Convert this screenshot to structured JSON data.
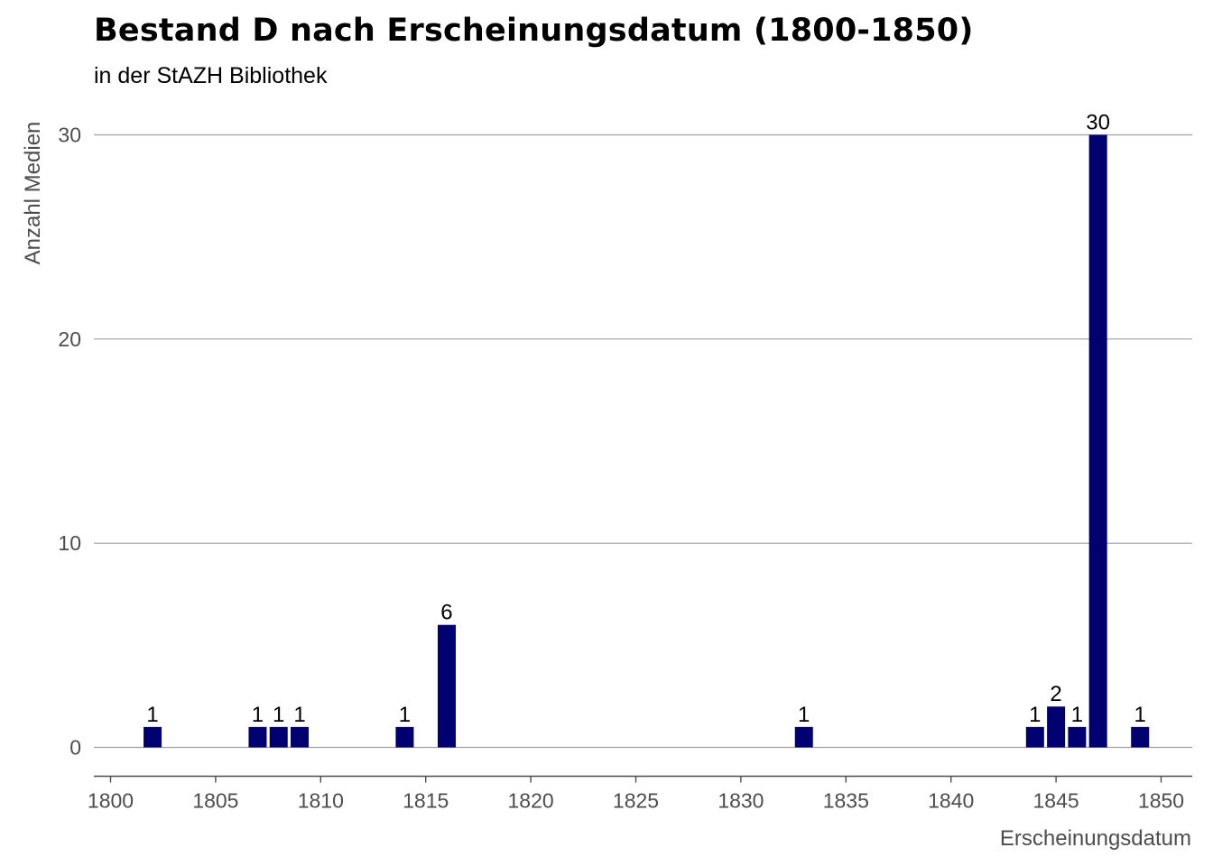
{
  "chart_data": {
    "type": "bar",
    "title": "Bestand D nach Erscheinungsdatum (1800-1850)",
    "subtitle": "in der StAZH Bibliothek",
    "xlabel": "Erscheinungsdatum",
    "ylabel": "Anzahl Medien",
    "x": [
      1802,
      1807,
      1808,
      1809,
      1814,
      1816,
      1833,
      1844,
      1845,
      1846,
      1847,
      1849
    ],
    "values": [
      1,
      1,
      1,
      1,
      1,
      6,
      1,
      1,
      2,
      1,
      30,
      1
    ],
    "xlim": [
      1800,
      1850
    ],
    "ylim": [
      0,
      30
    ],
    "x_ticks": [
      1800,
      1805,
      1810,
      1815,
      1820,
      1825,
      1830,
      1835,
      1840,
      1845,
      1850
    ],
    "y_ticks": [
      0,
      10,
      20,
      30
    ],
    "grid": "horizontal",
    "bar_color": "#000070",
    "grid_color": "#a0a0a0",
    "axis_color": "#4d4d4d"
  }
}
